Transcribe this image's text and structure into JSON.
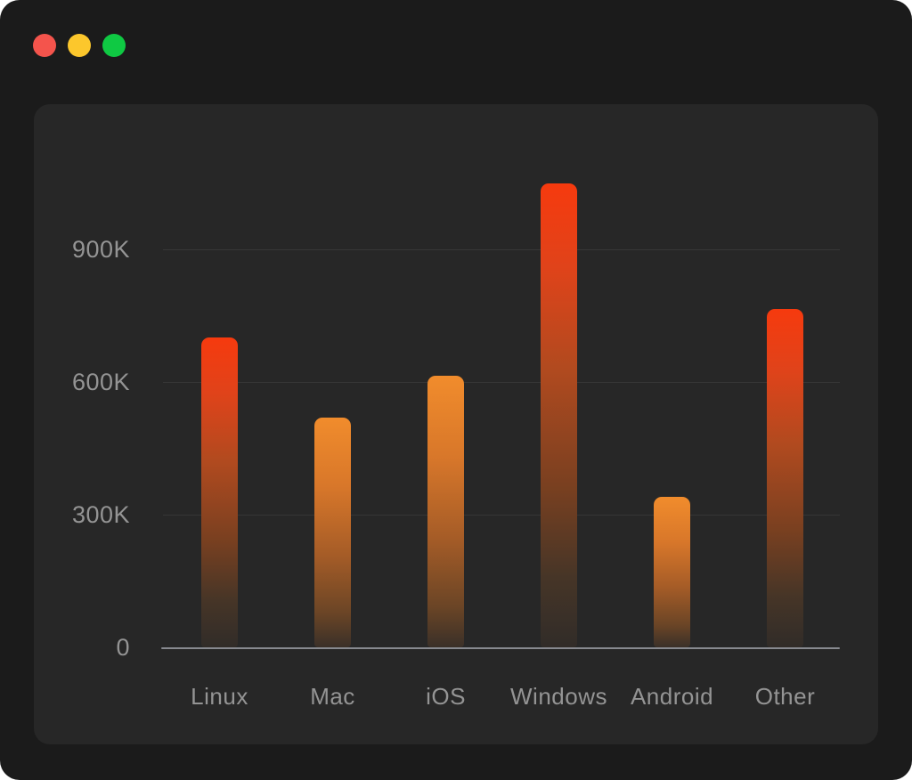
{
  "window": {
    "background": "#1b1b1b",
    "card_background": "#272727",
    "traffic_lights": [
      {
        "name": "close",
        "color": "#f4544c"
      },
      {
        "name": "minimize",
        "color": "#fcc72c"
      },
      {
        "name": "maximize",
        "color": "#0fc943"
      }
    ]
  },
  "chart_data": {
    "type": "bar",
    "title": "",
    "xlabel": "",
    "ylabel": "",
    "categories": [
      "Linux",
      "Mac",
      "iOS",
      "Windows",
      "Android",
      "Other"
    ],
    "values": [
      700000,
      520000,
      615000,
      1050000,
      340000,
      765000
    ],
    "values_k": [
      700,
      520,
      615,
      1050,
      340,
      765
    ],
    "tones": [
      "red",
      "orange",
      "orange",
      "red",
      "orange",
      "red"
    ],
    "y_ticks": [
      {
        "label": "900K",
        "value_k": 900
      },
      {
        "label": "600K",
        "value_k": 600
      },
      {
        "label": "300K",
        "value_k": 300
      },
      {
        "label": "0",
        "value_k": 0
      }
    ],
    "ylim_k": [
      0,
      1080
    ],
    "grid": "horizontal",
    "legend": "none",
    "bar_top_colors": {
      "red": "#f5390f",
      "orange": "#f08c2e"
    },
    "gridline_color": "#3a3a3a",
    "axis_color": "#87898f",
    "label_color": "#949494"
  }
}
